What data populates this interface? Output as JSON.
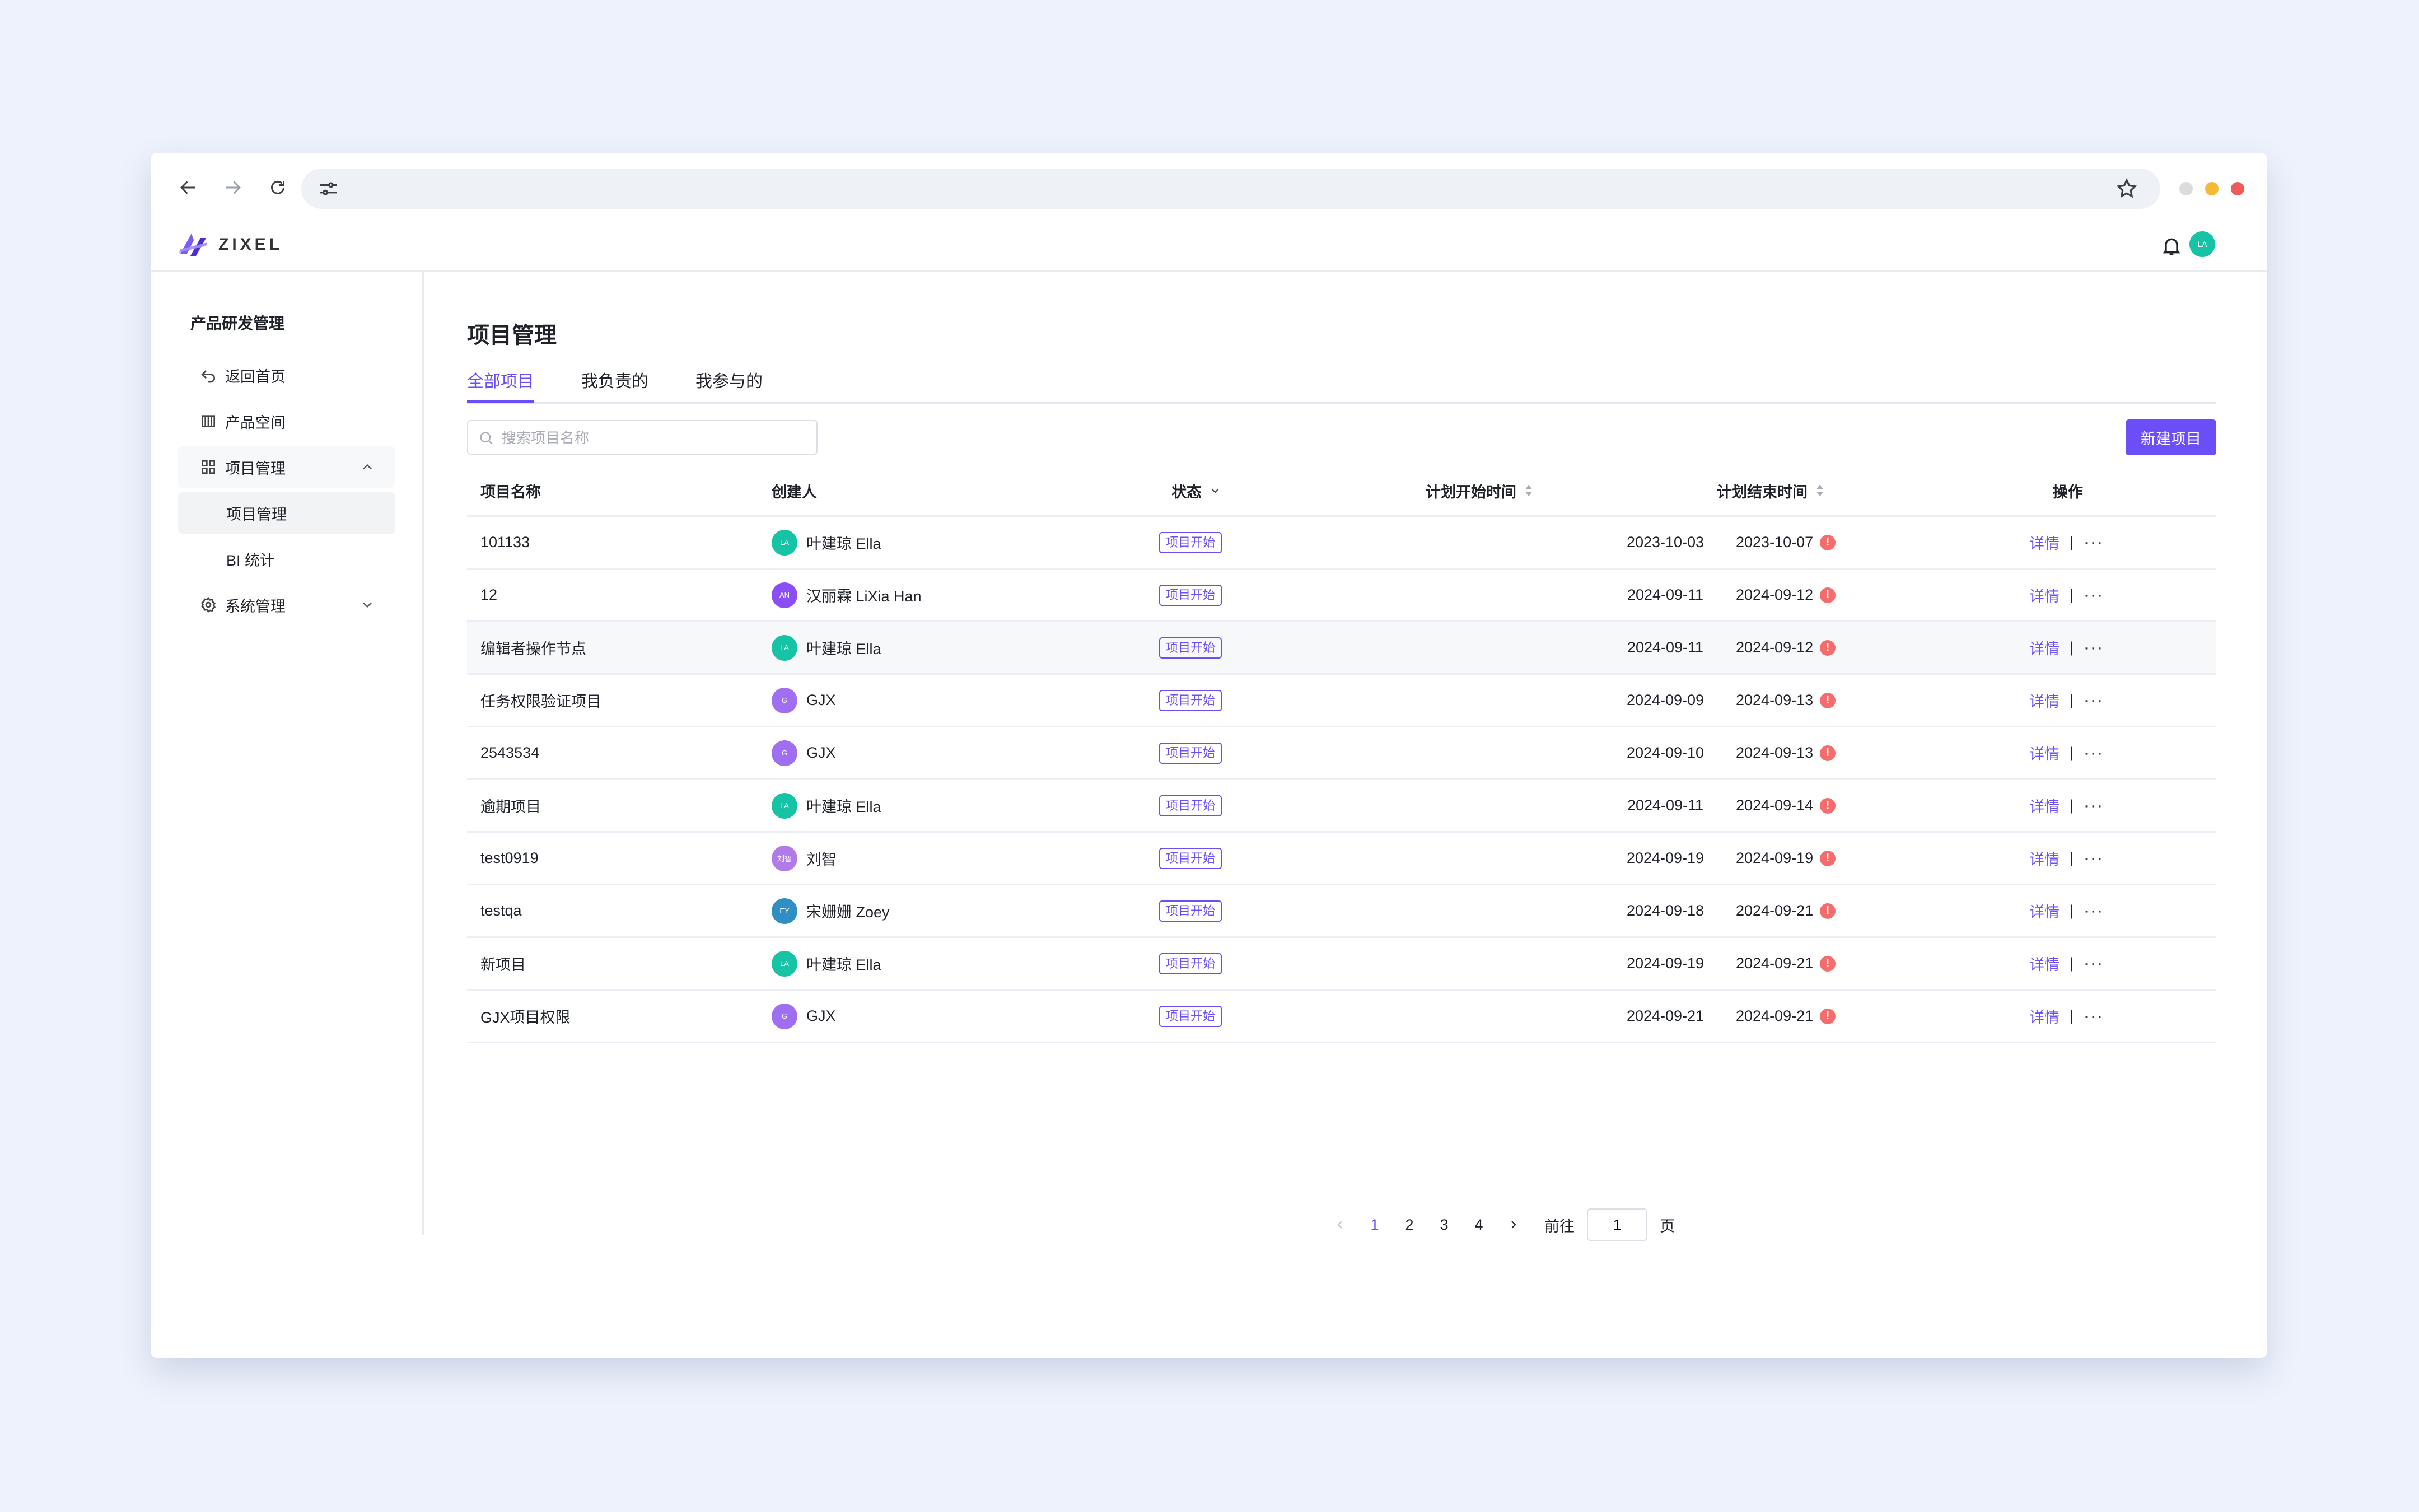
{
  "browser": {
    "url": ""
  },
  "app": {
    "logo_text": "ZIXEL",
    "user_avatar": "LA"
  },
  "sidebar": {
    "title": "产品研发管理",
    "items": [
      {
        "label": "返回首页"
      },
      {
        "label": "产品空间"
      },
      {
        "label": "项目管理"
      },
      {
        "label": "项目管理"
      },
      {
        "label": "BI 统计"
      },
      {
        "label": "系统管理"
      }
    ]
  },
  "main": {
    "title": "项目管理",
    "tabs": [
      {
        "label": "全部项目"
      },
      {
        "label": "我负责的"
      },
      {
        "label": "我参与的"
      }
    ],
    "search_placeholder": "搜索项目名称",
    "new_button": "新建项目"
  },
  "table": {
    "columns": [
      "项目名称",
      "创建人",
      "状态",
      "计划开始时间",
      "计划结束时间",
      "操作"
    ],
    "rows": [
      {
        "name": "101133",
        "creator": "叶建琼 Ella",
        "avatar": "LA",
        "avatar_color": "#17c3a5",
        "status": "项目开始",
        "start": "2023-10-03",
        "end": "2023-10-07",
        "action": "详情"
      },
      {
        "name": "12",
        "creator": "汉丽霖 LiXia Han",
        "avatar": "AN",
        "avatar_color": "#8b4ef6",
        "status": "项目开始",
        "start": "2024-09-11",
        "end": "2024-09-12",
        "action": "详情"
      },
      {
        "name": "编辑者操作节点",
        "creator": "叶建琼 Ella",
        "avatar": "LA",
        "avatar_color": "#17c3a5",
        "status": "项目开始",
        "start": "2024-09-11",
        "end": "2024-09-12",
        "action": "详情"
      },
      {
        "name": "任务权限验证项目",
        "creator": "GJX",
        "avatar": "G",
        "avatar_color": "#a06ef0",
        "status": "项目开始",
        "start": "2024-09-09",
        "end": "2024-09-13",
        "action": "详情"
      },
      {
        "name": "2543534",
        "creator": "GJX",
        "avatar": "G",
        "avatar_color": "#a06ef0",
        "status": "项目开始",
        "start": "2024-09-10",
        "end": "2024-09-13",
        "action": "详情"
      },
      {
        "name": "逾期项目",
        "creator": "叶建琼 Ella",
        "avatar": "LA",
        "avatar_color": "#17c3a5",
        "status": "项目开始",
        "start": "2024-09-11",
        "end": "2024-09-14",
        "action": "详情"
      },
      {
        "name": "test0919",
        "creator": "刘智",
        "avatar": "刘智",
        "avatar_color": "#b07ae8",
        "status": "项目开始",
        "start": "2024-09-19",
        "end": "2024-09-19",
        "action": "详情"
      },
      {
        "name": "testqa",
        "creator": "宋姗姗 Zoey",
        "avatar": "EY",
        "avatar_color": "#2f8fc4",
        "status": "项目开始",
        "start": "2024-09-18",
        "end": "2024-09-21",
        "action": "详情"
      },
      {
        "name": "新项目",
        "creator": "叶建琼 Ella",
        "avatar": "LA",
        "avatar_color": "#17c3a5",
        "status": "项目开始",
        "start": "2024-09-19",
        "end": "2024-09-21",
        "action": "详情"
      },
      {
        "name": "GJX项目权限",
        "creator": "GJX",
        "avatar": "G",
        "avatar_color": "#a06ef0",
        "status": "项目开始",
        "start": "2024-09-21",
        "end": "2024-09-21",
        "action": "详情"
      }
    ]
  },
  "pagination": {
    "pages": [
      "1",
      "2",
      "3",
      "4"
    ],
    "current": "1",
    "goto_label": "前往",
    "goto_value": "1",
    "page_suffix": "页"
  },
  "colors": {
    "accent": "#6b4ef6",
    "warning": "#f56c6c",
    "background": "#edf2fc"
  }
}
